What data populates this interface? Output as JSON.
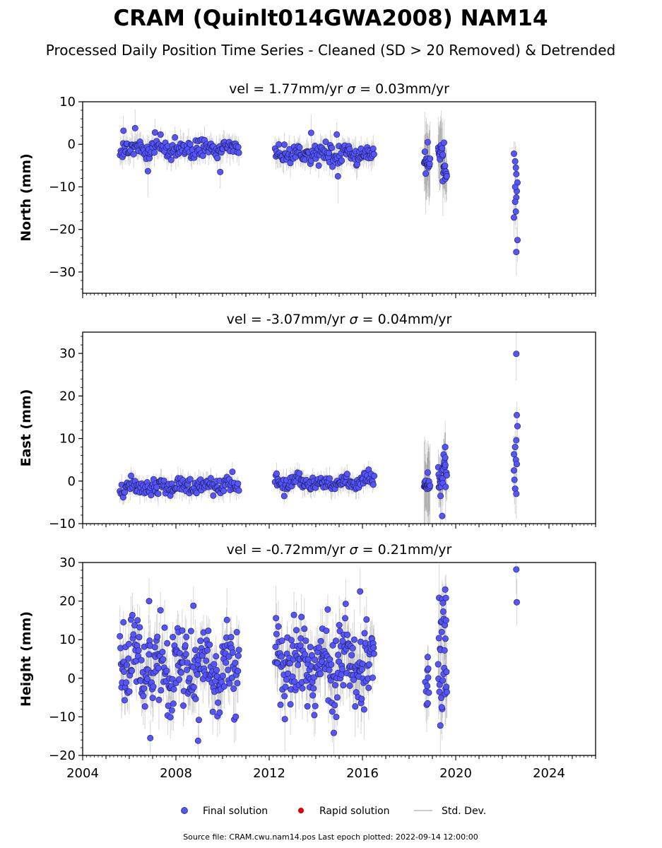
{
  "header": {
    "title": "CRAM (Quinlt014GWA2008) NAM14",
    "subtitle": "Processed Daily Position Time Series - Cleaned (SD > 20 Removed) & Detrended"
  },
  "colors": {
    "final": "#5555ff",
    "final_edge": "#1a1a4d",
    "rapid": "#dd0000",
    "stddev": "#000000"
  },
  "legend": {
    "final": "Final solution",
    "rapid": "Rapid solution",
    "stddev": "Std. Dev."
  },
  "footer": "Source file: CRAM.cwu.nam14.pos  Last epoch plotted: 2022-09-14 12:00:00",
  "chart_data": [
    {
      "type": "scatter",
      "component": "north",
      "title": "vel = 1.77mm/yr   σ = 0.03mm/yr",
      "vel_text": "vel = 1.77mm/yr",
      "sigma_text": " = 0.03mm/yr",
      "ylabel": "North (mm)",
      "xlim": [
        2004,
        2026
      ],
      "ylim": [
        -35,
        10
      ],
      "yticks": [
        10,
        0,
        -10,
        -20,
        -30
      ],
      "segments": [
        {
          "start": 2005.6,
          "end": 2010.7,
          "center": -1.0,
          "noise": 1.1,
          "err": 2.5,
          "count": 150
        },
        {
          "start": 2012.25,
          "end": 2016.5,
          "center": -2.5,
          "noise": 1.1,
          "err": 2.5,
          "count": 130
        },
        {
          "start": 2018.65,
          "end": 2018.9,
          "center": -3.5,
          "noise": 0.8,
          "err": 7,
          "count": 18
        },
        {
          "start": 2019.25,
          "end": 2019.45,
          "center": -2.5,
          "noise": 1.3,
          "err": 6,
          "count": 14
        },
        {
          "start": 2019.45,
          "end": 2019.62,
          "center": -6.0,
          "noise": 1.5,
          "err": 6,
          "count": 12
        }
      ],
      "points": [
        {
          "x": 2005.75,
          "y": 3.2
        },
        {
          "x": 2006.25,
          "y": 3.8
        },
        {
          "x": 2006.8,
          "y": -6.3
        },
        {
          "x": 2009.9,
          "y": -6.5
        },
        {
          "x": 2013.8,
          "y": 2.7
        },
        {
          "x": 2014.9,
          "y": 2.3
        },
        {
          "x": 2014.95,
          "y": -7.5
        },
        {
          "x": 2018.8,
          "y": 0.5
        },
        {
          "x": 2019.5,
          "y": 0.4
        },
        {
          "x": 2022.5,
          "y": -2.2
        },
        {
          "x": 2022.55,
          "y": -4.0
        },
        {
          "x": 2022.58,
          "y": -5.5
        },
        {
          "x": 2022.6,
          "y": -7.0
        },
        {
          "x": 2022.65,
          "y": -9.0
        },
        {
          "x": 2022.62,
          "y": -11.0
        },
        {
          "x": 2022.6,
          "y": -12.5
        },
        {
          "x": 2022.55,
          "y": -13.5
        },
        {
          "x": 2022.5,
          "y": -17.2
        },
        {
          "x": 2022.58,
          "y": -15.8
        },
        {
          "x": 2022.65,
          "y": -22.5
        },
        {
          "x": 2022.6,
          "y": -25.3
        },
        {
          "x": 2022.55,
          "y": -10.0
        }
      ]
    },
    {
      "type": "scatter",
      "component": "east",
      "title": "vel = -3.07mm/yr   σ = 0.04mm/yr",
      "vel_text": "vel = -3.07mm/yr",
      "sigma_text": " = 0.04mm/yr",
      "ylabel": "East (mm)",
      "xlim": [
        2004,
        2026
      ],
      "ylim": [
        -10,
        35
      ],
      "yticks": [
        30,
        20,
        10,
        0,
        -10
      ],
      "segments": [
        {
          "start": 2005.6,
          "end": 2010.7,
          "center": -1.2,
          "noise": 0.9,
          "err": 2.0,
          "count": 150
        },
        {
          "start": 2012.25,
          "end": 2016.5,
          "center": -0.3,
          "noise": 0.9,
          "err": 2.0,
          "count": 130
        },
        {
          "start": 2018.65,
          "end": 2018.9,
          "center": -1.0,
          "noise": 0.8,
          "err": 8,
          "count": 18
        },
        {
          "start": 2019.25,
          "end": 2019.45,
          "center": -0.5,
          "noise": 1.2,
          "err": 6,
          "count": 14
        },
        {
          "start": 2019.45,
          "end": 2019.62,
          "center": 2.5,
          "noise": 2.0,
          "err": 6,
          "count": 12
        }
      ],
      "points": [
        {
          "x": 2018.8,
          "y": 2.0
        },
        {
          "x": 2019.35,
          "y": -3.5
        },
        {
          "x": 2019.42,
          "y": -8.2
        },
        {
          "x": 2019.55,
          "y": 8.0
        },
        {
          "x": 2019.55,
          "y": 5.5
        },
        {
          "x": 2022.6,
          "y": 29.9
        },
        {
          "x": 2022.62,
          "y": 15.5
        },
        {
          "x": 2022.65,
          "y": 12.9
        },
        {
          "x": 2022.6,
          "y": 9.6
        },
        {
          "x": 2022.55,
          "y": 8.0
        },
        {
          "x": 2022.5,
          "y": 6.3
        },
        {
          "x": 2022.58,
          "y": 5.0
        },
        {
          "x": 2022.62,
          "y": 4.0
        },
        {
          "x": 2022.5,
          "y": 2.5
        },
        {
          "x": 2022.52,
          "y": 0.3
        },
        {
          "x": 2022.55,
          "y": -1.8
        },
        {
          "x": 2022.6,
          "y": -3.0
        }
      ]
    },
    {
      "type": "scatter",
      "component": "height",
      "title": "vel = -0.72mm/yr   σ = 0.21mm/yr",
      "vel_text": "vel = -0.72mm/yr",
      "sigma_text": " = 0.21mm/yr",
      "ylabel": "Height (mm)",
      "xlim": [
        2004,
        2026
      ],
      "ylim": [
        -20,
        30
      ],
      "yticks": [
        30,
        20,
        10,
        0,
        -10,
        -20
      ],
      "xticks": [
        2004,
        2008,
        2012,
        2016,
        2020,
        2024
      ],
      "segments": [
        {
          "start": 2005.6,
          "end": 2010.7,
          "center": 3.0,
          "noise": 5.5,
          "err": 6,
          "count": 230
        },
        {
          "start": 2012.25,
          "end": 2016.5,
          "center": 4.0,
          "noise": 5.5,
          "err": 6,
          "count": 200
        },
        {
          "start": 2018.7,
          "end": 2018.85,
          "center": 1.0,
          "noise": 4.0,
          "err": 6,
          "count": 6
        },
        {
          "start": 2019.25,
          "end": 2019.62,
          "center": 5.0,
          "noise": 7.0,
          "err": 8,
          "count": 30
        }
      ],
      "points": [
        {
          "x": 2005.75,
          "y": 14.5
        },
        {
          "x": 2006.85,
          "y": 20.0
        },
        {
          "x": 2006.9,
          "y": -15.5
        },
        {
          "x": 2008.95,
          "y": -16.2
        },
        {
          "x": 2008.75,
          "y": 18.8
        },
        {
          "x": 2015.9,
          "y": 22.5
        },
        {
          "x": 2019.55,
          "y": 23.0
        },
        {
          "x": 2019.58,
          "y": 20.8
        },
        {
          "x": 2019.4,
          "y": -7.5
        },
        {
          "x": 2022.6,
          "y": 28.2
        },
        {
          "x": 2022.62,
          "y": 19.7
        },
        {
          "x": 2018.8,
          "y": 5.5
        },
        {
          "x": 2018.8,
          "y": -6.5
        },
        {
          "x": 2018.78,
          "y": -2.0
        },
        {
          "x": 2018.82,
          "y": 2.5
        }
      ]
    }
  ]
}
